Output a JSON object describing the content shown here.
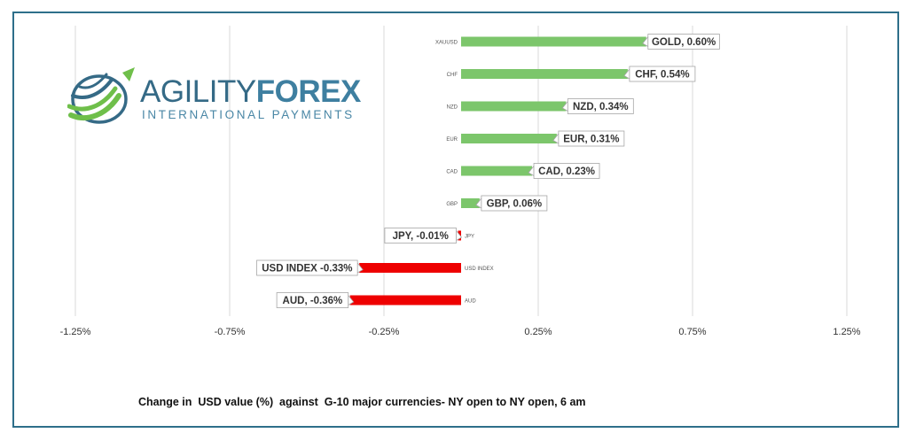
{
  "logo": {
    "word_part1": "AGILITY",
    "word_part2": "FOREX",
    "subtitle": "INTERNATIONAL PAYMENTS",
    "colors": {
      "dark": "#356a86",
      "green": "#6fbf4a"
    }
  },
  "caption": "Change in  USD value (%)  against  G-10 major currencies- NY open to NY open, 6 am",
  "chart_data": {
    "type": "bar",
    "orientation": "horizontal",
    "categories": [
      "XAUUSD",
      "CHF",
      "NZD",
      "EUR",
      "CAD",
      "GBP",
      "JPY",
      "USD INDEX",
      "AUD"
    ],
    "values": [
      0.6,
      0.54,
      0.34,
      0.31,
      0.23,
      0.06,
      -0.01,
      -0.33,
      -0.36
    ],
    "data_labels": [
      "GOLD, 0.60%",
      "CHF, 0.54%",
      "NZD, 0.34%",
      "EUR, 0.31%",
      "CAD, 0.23%",
      "GBP, 0.06%",
      "JPY, -0.01%",
      "USD INDEX -0.33%",
      "AUD, -0.36%"
    ],
    "xlim": [
      -1.5,
      1.5
    ],
    "ticks": [
      -1.25,
      -0.75,
      -0.25,
      0.25,
      0.75,
      1.25
    ],
    "tick_labels": [
      "-1.25%",
      "-0.75%",
      "-0.25%",
      "0.25%",
      "0.75%",
      "1.25%"
    ],
    "grid": true,
    "colors": {
      "positive": "#7cc66b",
      "negative": "#ee0000",
      "grid": "#d9d9d9",
      "label_border": "#a6a6a6"
    }
  }
}
